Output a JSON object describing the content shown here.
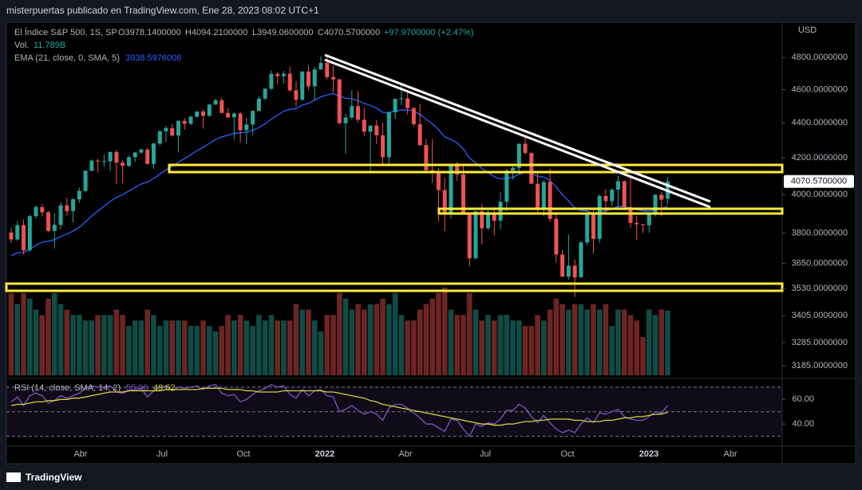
{
  "header": {
    "publisher": "misterpuertas publicado en TradingView.com, Ene 28, 2023 08:02 UTC+1",
    "brand": "TradingView"
  },
  "chart_data": {
    "type": "candlestick",
    "title": "El Índice S&P 500, 1S, SP",
    "ohlc_labels": [
      "O3978.1400000",
      "H4094.2100000",
      "L3949.0600000",
      "C4070.5700000"
    ],
    "change_label": "+97.9700000 (+2.47%)",
    "volume_name": "Vol.",
    "volume_label": "11.789B",
    "ema_name": "EMA (21, close, 0, SMA, 5)",
    "rsi_name": "RSI (14, close, SMA, 14, 2)",
    "currency": "USD",
    "last_price_label": "4070.5700000",
    "log_scale": true,
    "ylim": [
      3145,
      5020
    ],
    "yticks": [
      {
        "value": 4800,
        "label": "4800.0000000"
      },
      {
        "value": 4600,
        "label": "4600.0000000"
      },
      {
        "value": 4400,
        "label": "4400.0000000"
      },
      {
        "value": 4200,
        "label": "4200.0000000"
      },
      {
        "value": 4000,
        "label": "4000.0000000"
      },
      {
        "value": 3800,
        "label": "3800.0000000"
      },
      {
        "value": 3650,
        "label": "3650.0000000"
      },
      {
        "value": 3530,
        "label": "3530.0000000"
      },
      {
        "value": 3405,
        "label": "3405.0000000"
      },
      {
        "value": 3285,
        "label": "3285.0000000"
      },
      {
        "value": 3185,
        "label": "3185.0000000"
      }
    ],
    "xtick_labels": [
      "Abr",
      "Jul",
      "Oct",
      "2022",
      "Abr",
      "Jul",
      "Oct",
      "2023",
      "Abr"
    ],
    "up_color": "#26a69a",
    "down_color": "#ef5350",
    "ema_color": "#2962ff",
    "rsi_color": "#7e57c2",
    "rsi_ma_color": "#d4d43a",
    "candles": [
      [
        3803,
        3826,
        3750,
        3768
      ],
      [
        3768,
        3861,
        3760,
        3841
      ],
      [
        3841,
        3870,
        3694,
        3714
      ],
      [
        3714,
        3894,
        3707,
        3887
      ],
      [
        3887,
        3943,
        3874,
        3934
      ],
      [
        3934,
        3950,
        3885,
        3907
      ],
      [
        3907,
        3914,
        3805,
        3811
      ],
      [
        3811,
        3903,
        3723,
        3842
      ],
      [
        3842,
        3960,
        3820,
        3943
      ],
      [
        3943,
        3983,
        3890,
        3913
      ],
      [
        3913,
        3981,
        3853,
        3975
      ],
      [
        3975,
        4037,
        3955,
        4020
      ],
      [
        4020,
        4130,
        4013,
        4129
      ],
      [
        4129,
        4191,
        4125,
        4185
      ],
      [
        4185,
        4195,
        4118,
        4180
      ],
      [
        4180,
        4218,
        4150,
        4181
      ],
      [
        4181,
        4238,
        4130,
        4233
      ],
      [
        4233,
        4245,
        4056,
        4174
      ],
      [
        4174,
        4187,
        4061,
        4156
      ],
      [
        4156,
        4213,
        4150,
        4204
      ],
      [
        4204,
        4234,
        4180,
        4230
      ],
      [
        4230,
        4255,
        4222,
        4247
      ],
      [
        4247,
        4257,
        4164,
        4166
      ],
      [
        4166,
        4287,
        4140,
        4281
      ],
      [
        4281,
        4356,
        4270,
        4352
      ],
      [
        4352,
        4384,
        4289,
        4370
      ],
      [
        4370,
        4394,
        4321,
        4327
      ],
      [
        4327,
        4415,
        4233,
        4412
      ],
      [
        4412,
        4429,
        4360,
        4395
      ],
      [
        4395,
        4440,
        4385,
        4437
      ],
      [
        4437,
        4468,
        4430,
        4468
      ],
      [
        4468,
        4480,
        4367,
        4442
      ],
      [
        4442,
        4513,
        4436,
        4509
      ],
      [
        4509,
        4545,
        4506,
        4535
      ],
      [
        4535,
        4549,
        4457,
        4459
      ],
      [
        4459,
        4486,
        4428,
        4433
      ],
      [
        4433,
        4465,
        4305,
        4455
      ],
      [
        4455,
        4466,
        4288,
        4357
      ],
      [
        4357,
        4429,
        4278,
        4391
      ],
      [
        4391,
        4475,
        4329,
        4471
      ],
      [
        4471,
        4559,
        4467,
        4545
      ],
      [
        4545,
        4608,
        4537,
        4605
      ],
      [
        4605,
        4718,
        4595,
        4697
      ],
      [
        4697,
        4708,
        4630,
        4683
      ],
      [
        4683,
        4715,
        4638,
        4698
      ],
      [
        4698,
        4743,
        4585,
        4595
      ],
      [
        4595,
        4652,
        4495,
        4538
      ],
      [
        4538,
        4713,
        4532,
        4712
      ],
      [
        4712,
        4752,
        4598,
        4620
      ],
      [
        4620,
        4740,
        4531,
        4725
      ],
      [
        4725,
        4808,
        4722,
        4766
      ],
      [
        4766,
        4818,
        4662,
        4677
      ],
      [
        4677,
        4749,
        4582,
        4663
      ],
      [
        4663,
        4665,
        4395,
        4398
      ],
      [
        4398,
        4453,
        4222,
        4432
      ],
      [
        4432,
        4596,
        4420,
        4500
      ],
      [
        4500,
        4590,
        4401,
        4419
      ],
      [
        4419,
        4490,
        4327,
        4349
      ],
      [
        4349,
        4385,
        4114,
        4385
      ],
      [
        4385,
        4416,
        4279,
        4329
      ],
      [
        4329,
        4402,
        4157,
        4204
      ],
      [
        4204,
        4465,
        4161,
        4463
      ],
      [
        4463,
        4546,
        4424,
        4543
      ],
      [
        4546,
        4637,
        4506,
        4546
      ],
      [
        4546,
        4593,
        4450,
        4488
      ],
      [
        4488,
        4494,
        4381,
        4393
      ],
      [
        4393,
        4513,
        4267,
        4272
      ],
      [
        4272,
        4308,
        4129,
        4132
      ],
      [
        4132,
        4307,
        4063,
        4123
      ],
      [
        4123,
        4144,
        3859,
        4024
      ],
      [
        4024,
        4091,
        3810,
        3901
      ],
      [
        3901,
        4159,
        3875,
        4158
      ],
      [
        4158,
        4178,
        4073,
        4109
      ],
      [
        4109,
        4168,
        3900,
        3901
      ],
      [
        3901,
        3907,
        3636,
        3675
      ],
      [
        3675,
        3914,
        3670,
        3912
      ],
      [
        3912,
        3950,
        3742,
        3825
      ],
      [
        3825,
        3918,
        3816,
        3899
      ],
      [
        3899,
        3936,
        3789,
        3863
      ],
      [
        3863,
        4013,
        3819,
        3962
      ],
      [
        3962,
        4140,
        3913,
        4130
      ],
      [
        4130,
        4168,
        4080,
        4145
      ],
      [
        4145,
        4280,
        4112,
        4280
      ],
      [
        4280,
        4325,
        4218,
        4228
      ],
      [
        4228,
        4230,
        4057,
        4058
      ],
      [
        4058,
        4120,
        3907,
        3924
      ],
      [
        3924,
        4076,
        3886,
        4067
      ],
      [
        4067,
        4140,
        3857,
        3873
      ],
      [
        3873,
        3907,
        3656,
        3693
      ],
      [
        3693,
        3716,
        3584,
        3586
      ],
      [
        3586,
        3792,
        3572,
        3639
      ],
      [
        3639,
        3669,
        3491,
        3583
      ],
      [
        3583,
        3762,
        3582,
        3753
      ],
      [
        3753,
        3906,
        3738,
        3901
      ],
      [
        3901,
        3920,
        3698,
        3771
      ],
      [
        3771,
        4001,
        3750,
        3993
      ],
      [
        3993,
        4028,
        3906,
        3965
      ],
      [
        3965,
        4034,
        3938,
        4026
      ],
      [
        4026,
        4100,
        3933,
        4072
      ],
      [
        4072,
        4076,
        3918,
        3934
      ],
      [
        3934,
        4101,
        3828,
        3852
      ],
      [
        3852,
        3888,
        3764,
        3845
      ],
      [
        3845,
        3846,
        3800,
        3840
      ],
      [
        3840,
        3906,
        3802,
        3895
      ],
      [
        3895,
        4003,
        3885,
        3999
      ],
      [
        3999,
        4015,
        3885,
        3973
      ],
      [
        3978.14,
        4094.21,
        3949.06,
        4070.57
      ]
    ],
    "volume": [
      15,
      13,
      15,
      14,
      12,
      11,
      14,
      15,
      13,
      12,
      11,
      11,
      10,
      10,
      11,
      11,
      11,
      12,
      11,
      9,
      10,
      10,
      12,
      11,
      9,
      10,
      10,
      10,
      10,
      9,
      9,
      10,
      9,
      8,
      9,
      11,
      10,
      11,
      10,
      9,
      11,
      10,
      11,
      10,
      10,
      10,
      13,
      12,
      12,
      10,
      8,
      11,
      11,
      15,
      14,
      12,
      13,
      12,
      13,
      13,
      14,
      13,
      15,
      11,
      10,
      10,
      12,
      13,
      14,
      15,
      16,
      12,
      11,
      11,
      15,
      12,
      10,
      11,
      10,
      11,
      11,
      10,
      10,
      9,
      9,
      11,
      10,
      12,
      14,
      13,
      12,
      13,
      13,
      12,
      13,
      12,
      13,
      9,
      12,
      12,
      11,
      10,
      7,
      12,
      11,
      12,
      11.789
    ],
    "ema": [
      3688,
      3702,
      3703,
      3720,
      3739,
      3754,
      3759,
      3767,
      3783,
      3795,
      3811,
      3830,
      3857,
      3887,
      3914,
      3938,
      3965,
      3984,
      4000,
      4019,
      4038,
      4057,
      4067,
      4086,
      4110,
      4134,
      4152,
      4176,
      4196,
      4218,
      4241,
      4259,
      4282,
      4305,
      4319,
      4329,
      4340,
      4342,
      4346,
      4357,
      4374,
      4395,
      4422,
      4446,
      4469,
      4480,
      4485,
      4506,
      4516,
      4535,
      4556,
      4567,
      4576,
      4560,
      4548,
      4544,
      4533,
      4516,
      4504,
      4488,
      4462,
      4462,
      4469,
      4476,
      4477,
      4469,
      4451,
      4422,
      4395,
      4361,
      4319,
      4304,
      4286,
      4251,
      4199,
      4173,
      4141,
      4119,
      4096,
      4084,
      4088,
      4093,
      4110,
      4121,
      4115,
      4098,
      4095,
      4075,
      4040,
      3999,
      3966,
      3931,
      3915,
      3914,
      3901,
      3909,
      3914,
      3924,
      3937,
      3937,
      3929,
      3921,
      3914,
      3912,
      3920,
      3925,
      3938.5976006
    ],
    "rsi_ylim": [
      22,
      77
    ],
    "rsi_yticks": [
      {
        "value": 60,
        "label": "60.00"
      },
      {
        "value": 40,
        "label": "40.00"
      }
    ],
    "rsi_levels": [
      70,
      50,
      30
    ],
    "rsi": [
      58,
      62,
      55,
      63,
      65,
      63,
      57,
      59,
      63,
      61,
      63,
      65,
      69,
      71,
      70,
      70,
      71,
      66,
      65,
      67,
      68,
      69,
      62,
      67,
      70,
      71,
      67,
      70,
      69,
      70,
      71,
      68,
      71,
      72,
      65,
      63,
      64,
      58,
      60,
      64,
      67,
      69,
      72,
      70,
      71,
      64,
      61,
      68,
      63,
      67,
      68,
      63,
      62,
      50,
      52,
      55,
      51,
      48,
      50,
      48,
      43,
      53,
      56,
      56,
      53,
      49,
      45,
      40,
      40,
      37,
      34,
      44,
      43,
      36,
      30,
      40,
      38,
      41,
      40,
      44,
      51,
      51,
      56,
      53,
      46,
      41,
      47,
      41,
      36,
      33,
      35,
      33,
      40,
      45,
      41,
      49,
      48,
      50,
      52,
      46,
      44,
      43,
      43,
      46,
      50,
      49,
      55.06
    ],
    "rsi_ma": [
      55,
      56,
      56,
      57,
      58,
      58,
      59,
      59,
      60,
      60,
      61,
      61,
      62,
      63,
      64,
      65,
      66,
      66,
      66,
      67,
      67,
      67,
      67,
      67,
      67,
      68,
      68,
      68,
      68,
      68,
      68,
      69,
      69,
      69,
      69,
      68,
      68,
      68,
      67,
      67,
      66,
      66,
      66,
      66,
      67,
      67,
      67,
      67,
      67,
      67,
      67,
      66,
      66,
      65,
      64,
      63,
      62,
      61,
      59,
      58,
      56,
      55,
      54,
      53,
      52,
      51,
      50,
      49,
      48,
      47,
      46,
      45,
      44,
      43,
      42,
      41,
      40,
      40,
      39,
      39,
      40,
      40,
      41,
      42,
      42,
      43,
      43,
      44,
      44,
      44,
      44,
      43,
      43,
      42,
      42,
      42,
      43,
      43,
      44,
      45,
      45,
      46,
      46,
      47,
      48,
      48,
      49.62
    ]
  }
}
